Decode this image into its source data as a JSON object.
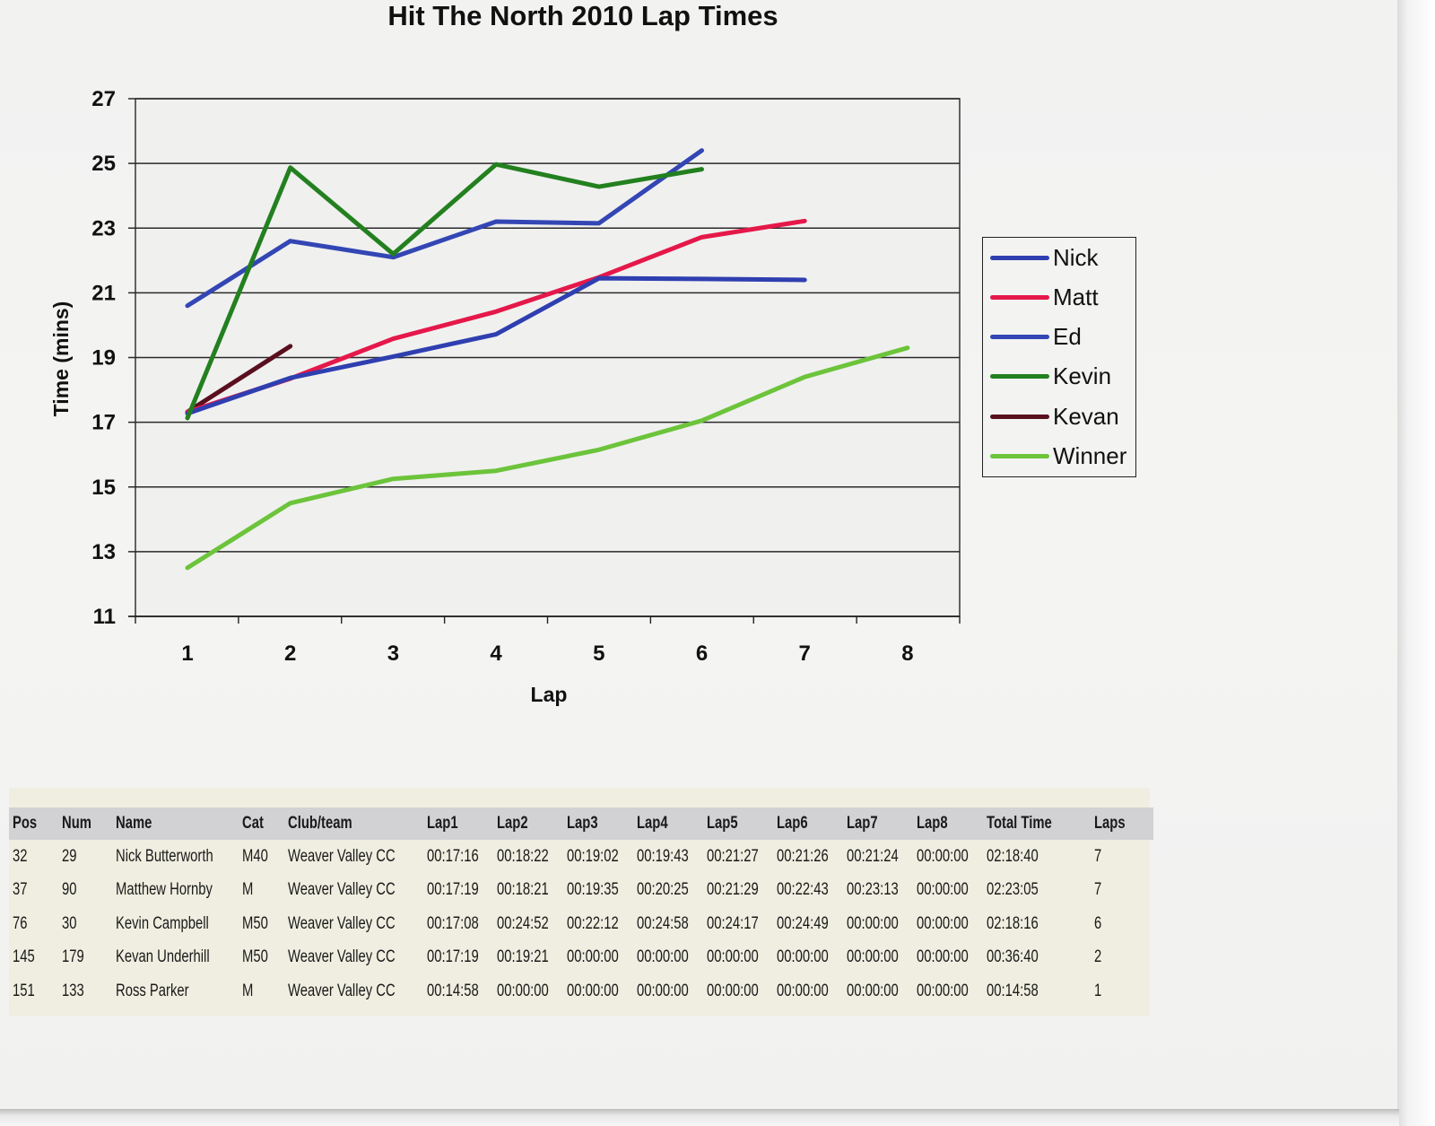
{
  "chart_data": {
    "type": "line",
    "title": "Hit The North 2010 Lap Times",
    "xlabel": "Lap",
    "ylabel": "Time (mins)",
    "x": [
      1,
      2,
      3,
      4,
      5,
      6,
      7,
      8
    ],
    "x_tick_labels": [
      "1",
      "2",
      "3",
      "4",
      "5",
      "6",
      "7",
      "8"
    ],
    "y_tick_labels": [
      "27",
      "25",
      "23",
      "21",
      "19",
      "17",
      "15",
      "13",
      "11"
    ],
    "ylim": [
      11,
      27
    ],
    "y_ticks": [
      11,
      13,
      15,
      17,
      19,
      21,
      23,
      25,
      27
    ],
    "grid": "horizontal",
    "legend_position": "right",
    "series": [
      {
        "name": "Nick",
        "color": "#2f3fb0",
        "values": [
          17.27,
          18.37,
          19.03,
          19.72,
          21.45,
          21.43,
          21.4
        ]
      },
      {
        "name": "Matt",
        "color": "#e5184a",
        "values": [
          17.32,
          18.35,
          19.58,
          20.42,
          21.48,
          22.72,
          23.22
        ]
      },
      {
        "name": "Ed",
        "color": "#3346b4",
        "values": [
          20.6,
          22.6,
          22.1,
          23.2,
          23.15,
          25.4
        ]
      },
      {
        "name": "Kevin",
        "color": "#23801f",
        "values": [
          17.13,
          24.87,
          22.2,
          24.97,
          24.28,
          24.82
        ]
      },
      {
        "name": "Kevan",
        "color": "#5a0f1e",
        "values": [
          17.32,
          19.35
        ]
      },
      {
        "name": "Winner",
        "color": "#6cc43a",
        "values": [
          12.5,
          14.5,
          15.25,
          15.5,
          16.15,
          17.05,
          18.4,
          19.3
        ]
      }
    ]
  },
  "table": {
    "columns": [
      "Pos",
      "Num",
      "Name",
      "Cat",
      "Club/team",
      "Lap1",
      "Lap2",
      "Lap3",
      "Lap4",
      "Lap5",
      "Lap6",
      "Lap7",
      "Lap8",
      "Total Time",
      "Laps"
    ],
    "rows": [
      [
        "32",
        "29",
        "Nick Butterworth",
        "M40",
        "Weaver Valley CC",
        "00:17:16",
        "00:18:22",
        "00:19:02",
        "00:19:43",
        "00:21:27",
        "00:21:26",
        "00:21:24",
        "00:00:00",
        "02:18:40",
        "7"
      ],
      [
        "37",
        "90",
        "Matthew Hornby",
        "M",
        "Weaver Valley CC",
        "00:17:19",
        "00:18:21",
        "00:19:35",
        "00:20:25",
        "00:21:29",
        "00:22:43",
        "00:23:13",
        "00:00:00",
        "02:23:05",
        "7"
      ],
      [
        "76",
        "30",
        "Kevin Campbell",
        "M50",
        "Weaver Valley CC",
        "00:17:08",
        "00:24:52",
        "00:22:12",
        "00:24:58",
        "00:24:17",
        "00:24:49",
        "00:00:00",
        "00:00:00",
        "02:18:16",
        "6"
      ],
      [
        "145",
        "179",
        "Kevan Underhill",
        "M50",
        "Weaver Valley CC",
        "00:17:19",
        "00:19:21",
        "00:00:00",
        "00:00:00",
        "00:00:00",
        "00:00:00",
        "00:00:00",
        "00:00:00",
        "00:36:40",
        "2"
      ],
      [
        "151",
        "133",
        "Ross Parker",
        "M",
        "Weaver Valley CC",
        "00:14:58",
        "00:00:00",
        "00:00:00",
        "00:00:00",
        "00:00:00",
        "00:00:00",
        "00:00:00",
        "00:00:00",
        "00:14:58",
        "1"
      ]
    ]
  }
}
